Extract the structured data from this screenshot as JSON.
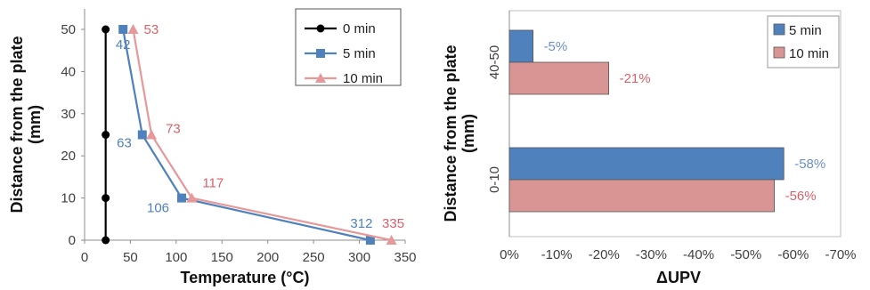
{
  "chart_data": [
    {
      "type": "line",
      "xlabel": "Temperature (°C)",
      "ylabel_line1": "Distance from the plate",
      "ylabel_line2": "(mm)",
      "xlim": [
        0,
        350
      ],
      "ylim": [
        0,
        55
      ],
      "xticks": [
        "0",
        "50",
        "100",
        "150",
        "200",
        "250",
        "300",
        "350"
      ],
      "yticks": [
        "0",
        "10",
        "20",
        "30",
        "40",
        "50"
      ],
      "grid": false,
      "legend_position": "top-right",
      "series": [
        {
          "name": "0 min",
          "color": "#000000",
          "marker": "circle",
          "points": [
            [
              23,
              50
            ],
            [
              23,
              25
            ],
            [
              23,
              10
            ],
            [
              23,
              0
            ]
          ]
        },
        {
          "name": "5 min",
          "color": "#4f81bd",
          "marker": "square",
          "points": [
            [
              42,
              50
            ],
            [
              63,
              25
            ],
            [
              106,
              10
            ],
            [
              312,
              0
            ]
          ],
          "labels": [
            "42",
            "63",
            "106",
            "312"
          ]
        },
        {
          "name": "10 min",
          "color": "#e6999a",
          "label_color": "#d9626a",
          "marker": "triangle",
          "points": [
            [
              53,
              50
            ],
            [
              73,
              25
            ],
            [
              117,
              10
            ],
            [
              335,
              0
            ]
          ],
          "labels": [
            "53",
            "73",
            "117",
            "335"
          ]
        }
      ]
    },
    {
      "type": "bar",
      "orientation": "horizontal",
      "xlabel": "ΔUPV",
      "ylabel_line1": "Distance from the plate",
      "ylabel_line2": "(mm)",
      "categories": [
        "40-50",
        "0-10"
      ],
      "xlim": [
        0,
        -70
      ],
      "xticks": [
        "0%",
        "-10%",
        "-20%",
        "-30%",
        "-40%",
        "-50%",
        "-60%",
        "-70%"
      ],
      "legend_position": "top-right",
      "series": [
        {
          "name": "5 min",
          "color": "#4f81bd",
          "label_color": "#6a8fc9",
          "values": [
            -5,
            -58
          ],
          "labels": [
            "-5%",
            "-58%"
          ]
        },
        {
          "name": "10 min",
          "color": "#d99594",
          "label_color": "#d9626a",
          "values": [
            -21,
            -56
          ],
          "labels": [
            "-21%",
            "-56%"
          ]
        }
      ]
    }
  ]
}
